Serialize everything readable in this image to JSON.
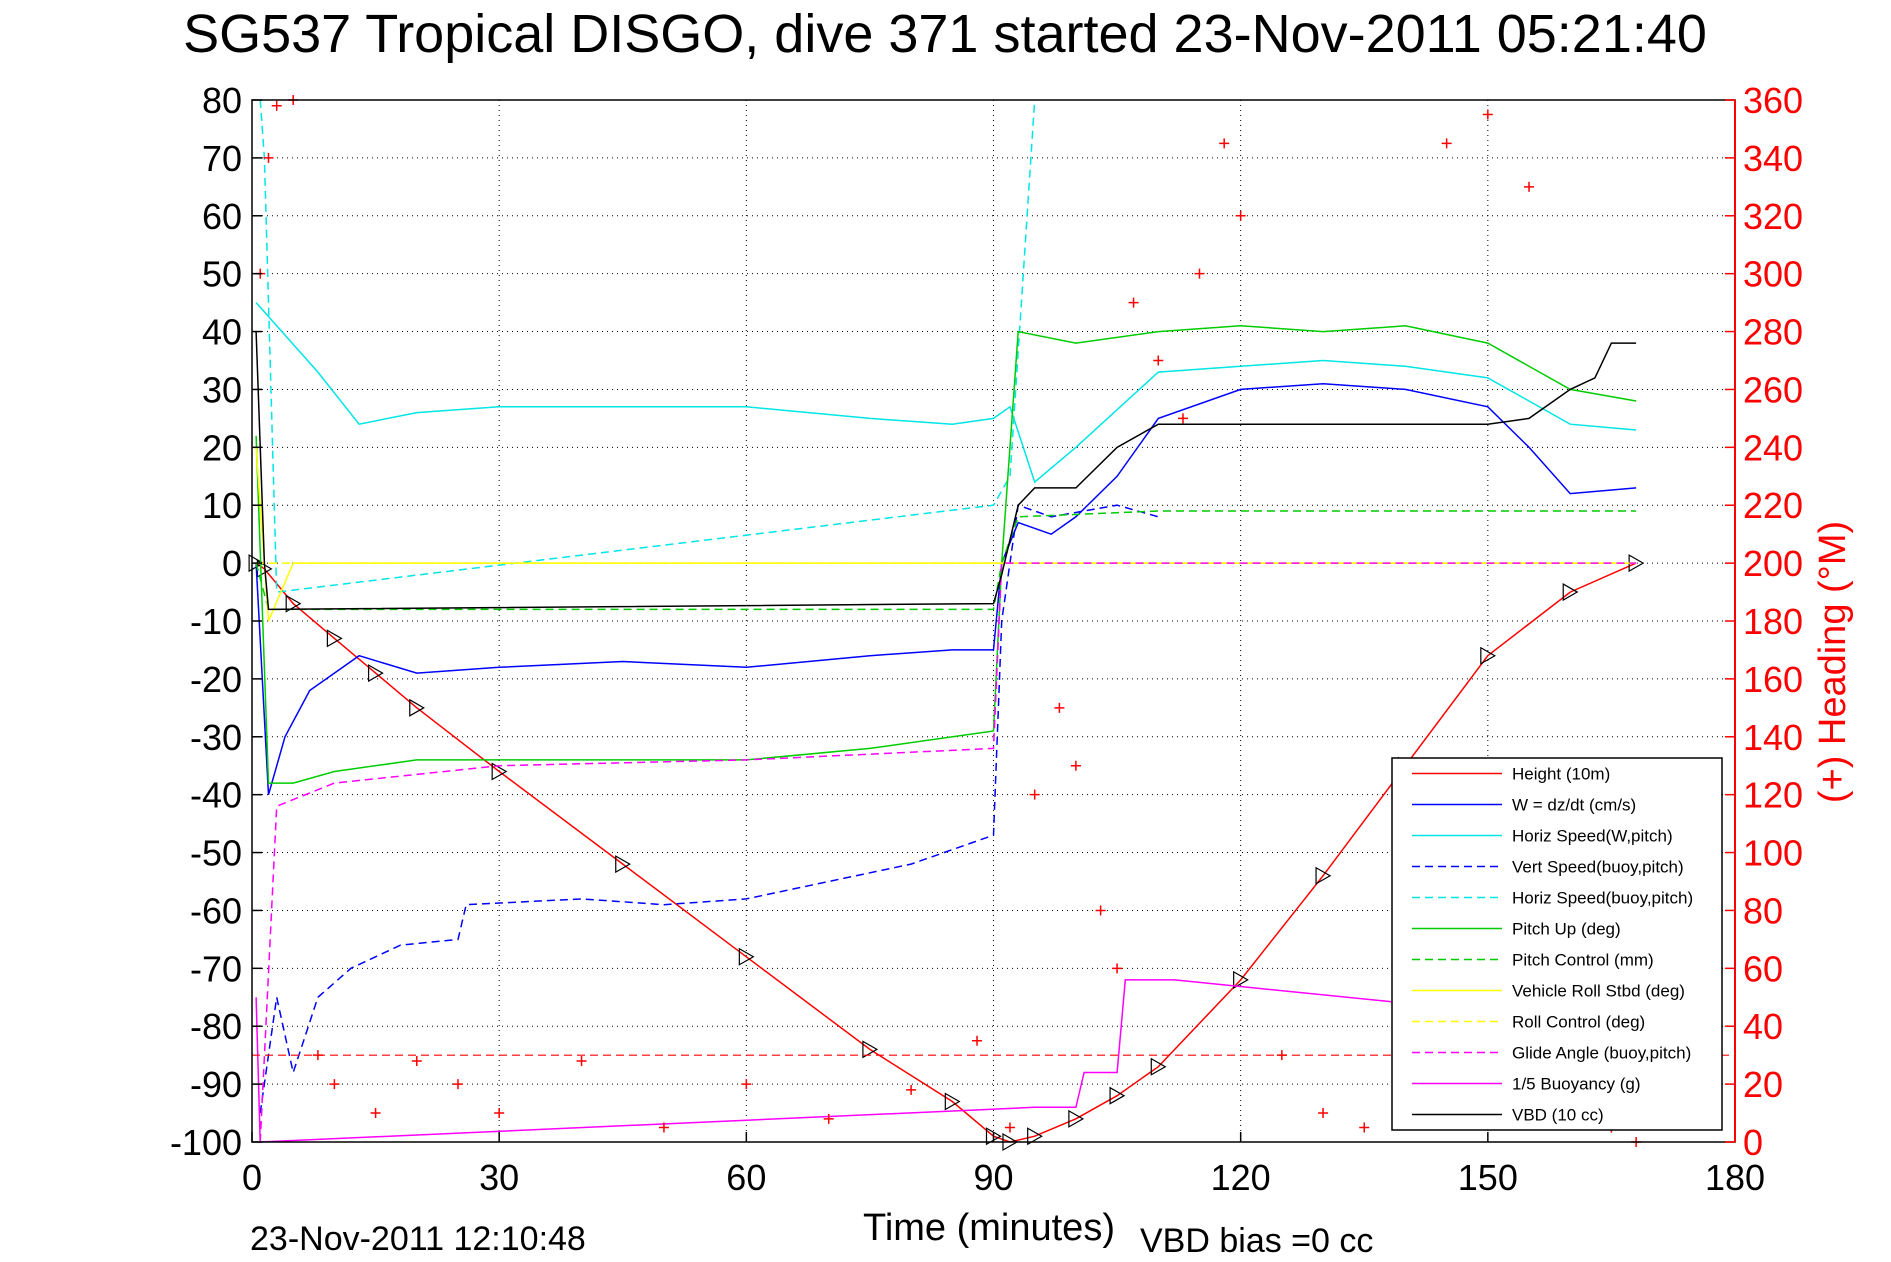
{
  "chart_data": {
    "type": "line",
    "title": "SG537 Tropical DISGO, dive 371 started 23-Nov-2011 05:21:40",
    "xlabel": "Time (minutes)",
    "ylabel": "",
    "y2label": "(+) Heading (°M)",
    "xlim": [
      0,
      180
    ],
    "ylim": [
      -100,
      80
    ],
    "y2lim": [
      0,
      360
    ],
    "xticks": [
      "0",
      "30",
      "60",
      "90",
      "120",
      "150",
      "180"
    ],
    "yticks": [
      "80",
      "70",
      "60",
      "50",
      "40",
      "30",
      "20",
      "10",
      "0",
      "-10",
      "-20",
      "-30",
      "-40",
      "-50",
      "-60",
      "-70",
      "-80",
      "-90",
      "-100"
    ],
    "y2ticks": [
      "360",
      "340",
      "320",
      "300",
      "280",
      "260",
      "240",
      "220",
      "200",
      "180",
      "160",
      "140",
      "120",
      "100",
      "80",
      "60",
      "40",
      "20",
      "0"
    ],
    "grid": true,
    "legend_position": "bottom-right",
    "colors": {
      "height": "#ff0000",
      "w": "#0000ff",
      "horiz_speed": "#00e5e5",
      "pitch": "#00cc00",
      "roll": "#ffff00",
      "glide": "#ff00ff",
      "vbd": "#000000",
      "heading": "#ff0000"
    },
    "series": [
      {
        "name": "Height (10m)",
        "style": "solid",
        "color": "#ff0000",
        "x": [
          0.5,
          1.5,
          5,
          10,
          15,
          20,
          30,
          45,
          60,
          75,
          85,
          90,
          92,
          95,
          100,
          105,
          110,
          120,
          130,
          140,
          150,
          160,
          168
        ],
        "y": [
          0,
          -1,
          -7,
          -13,
          -19,
          -25,
          -36,
          -52,
          -68,
          -84,
          -93,
          -99,
          -100,
          -99,
          -96,
          -92,
          -87,
          -72,
          -54,
          -35,
          -16,
          -5,
          0
        ]
      },
      {
        "name": "W = dz/dt (cm/s)",
        "style": "solid",
        "color": "#0000ff",
        "x": [
          0.5,
          2,
          4,
          7,
          10,
          13,
          20,
          30,
          45,
          60,
          75,
          85,
          90,
          91,
          93,
          97,
          100,
          105,
          110,
          120,
          130,
          140,
          150,
          155,
          160,
          168
        ],
        "y": [
          0,
          -40,
          -30,
          -22,
          -19,
          -16,
          -19,
          -18,
          -17,
          -18,
          -16,
          -15,
          -15,
          0,
          7,
          5,
          8,
          15,
          25,
          30,
          31,
          30,
          27,
          20,
          12,
          13
        ]
      },
      {
        "name": "Horiz Speed(W,pitch)",
        "style": "solid",
        "color": "#00e5e5",
        "x": [
          0.5,
          3,
          8,
          13,
          20,
          30,
          45,
          60,
          75,
          85,
          90,
          92,
          95,
          100,
          110,
          120,
          130,
          140,
          150,
          155,
          160,
          168
        ],
        "y": [
          45,
          41,
          33,
          24,
          26,
          27,
          27,
          27,
          25,
          24,
          25,
          27,
          14,
          20,
          33,
          34,
          35,
          34,
          32,
          28,
          24,
          23
        ]
      },
      {
        "name": "Vert Speed(buoy,pitch)",
        "style": "dashed",
        "color": "#0000ff",
        "x": [
          1,
          3,
          5,
          8,
          12,
          18,
          25,
          26,
          40,
          50,
          60,
          70,
          80,
          90,
          91,
          93,
          97,
          105,
          110
        ],
        "y": [
          -95,
          -75,
          -88,
          -75,
          -70,
          -66,
          -65,
          -59,
          -58,
          -59,
          -58,
          -55,
          -52,
          -47,
          -10,
          10,
          8,
          10,
          8
        ]
      },
      {
        "name": "Horiz Speed(buoy,pitch)",
        "style": "dashed",
        "color": "#00e5e5",
        "x": [
          1,
          1.5,
          3,
          90,
          92,
          95
        ],
        "y": [
          80,
          70,
          -5,
          10,
          15,
          80
        ]
      },
      {
        "name": "Pitch Up (deg)",
        "style": "solid",
        "color": "#00cc00",
        "x": [
          0.5,
          2,
          5,
          10,
          20,
          30,
          45,
          60,
          75,
          90,
          91,
          93,
          100,
          110,
          120,
          130,
          140,
          150,
          160,
          168
        ],
        "y": [
          22,
          -38,
          -38,
          -36,
          -34,
          -34,
          -34,
          -34,
          -32,
          -29,
          0,
          40,
          38,
          40,
          41,
          40,
          41,
          38,
          30,
          28
        ]
      },
      {
        "name": "Pitch Control (mm)",
        "style": "dashed",
        "color": "#00cc00",
        "x": [
          0.5,
          2,
          20,
          60,
          90,
          91,
          93,
          110,
          168
        ],
        "y": [
          0,
          -8,
          -8,
          -8,
          -8,
          0,
          8,
          9,
          9
        ]
      },
      {
        "name": "Vehicle Roll Stbd (deg)",
        "style": "solid",
        "color": "#ffff00",
        "x": [
          0.5,
          2,
          5,
          10,
          30,
          60,
          90,
          92,
          100,
          110,
          130,
          150,
          165,
          168
        ],
        "y": [
          20,
          -10,
          0,
          0,
          0,
          0,
          0,
          0,
          0,
          0,
          0,
          0,
          0,
          0
        ]
      },
      {
        "name": "Roll Control (deg)",
        "style": "dashed",
        "color": "#ffff00",
        "x": [
          0.5,
          2,
          10,
          50,
          90,
          92,
          110,
          168
        ],
        "y": [
          0,
          0,
          0,
          0,
          0,
          0,
          0,
          0
        ]
      },
      {
        "name": "Glide Angle (buoy,pitch)",
        "style": "dashed",
        "color": "#ff00ff",
        "x": [
          1,
          3,
          10,
          30,
          60,
          90,
          91,
          93,
          168
        ],
        "y": [
          -100,
          -42,
          -38,
          -35,
          -34,
          -32,
          0,
          0,
          0
        ]
      },
      {
        "name": "1/5 Buoyancy (g)",
        "style": "solid",
        "color": "#ff00ff",
        "x": [
          0.5,
          1,
          95,
          100,
          101,
          105,
          106,
          112,
          140
        ],
        "y": [
          -75,
          -100,
          -94,
          -94,
          -88,
          -88,
          -72,
          -72,
          -76
        ]
      },
      {
        "name": "VBD (10 cc)",
        "style": "solid",
        "color": "#000000",
        "x": [
          0.5,
          1.5,
          2,
          90,
          91,
          93,
          95,
          100,
          105,
          110,
          115,
          150,
          155,
          160,
          163,
          165,
          168
        ],
        "y": [
          40,
          0,
          -8,
          -7,
          -2,
          10,
          13,
          13,
          20,
          24,
          24,
          24,
          25,
          30,
          32,
          38,
          38
        ]
      }
    ],
    "heading_series": {
      "name": "(+) Heading (°M)",
      "marker": "+",
      "color": "#ff0000",
      "x": [
        1,
        2,
        3,
        5,
        8,
        10,
        15,
        20,
        25,
        30,
        40,
        50,
        60,
        70,
        80,
        88,
        92,
        95,
        98,
        100,
        103,
        105,
        107,
        110,
        113,
        115,
        118,
        120,
        125,
        130,
        135,
        140,
        145,
        150,
        155,
        160,
        165,
        168
      ],
      "y": [
        300,
        340,
        358,
        360,
        30,
        20,
        10,
        28,
        20,
        10,
        28,
        5,
        20,
        8,
        18,
        35,
        5,
        120,
        150,
        130,
        80,
        60,
        290,
        270,
        250,
        300,
        345,
        320,
        30,
        10,
        5,
        20,
        345,
        355,
        330,
        10,
        5,
        0
      ]
    },
    "reference_line": {
      "style": "dashed",
      "color": "#ff0000",
      "y2": 30
    }
  },
  "legend": [
    {
      "label": "Height (10m)",
      "color": "#ff0000",
      "style": "solid"
    },
    {
      "label": "W = dz/dt (cm/s)",
      "color": "#0000ff",
      "style": "solid"
    },
    {
      "label": "Horiz Speed(W,pitch)",
      "color": "#00e5e5",
      "style": "solid"
    },
    {
      "label": "Vert Speed(buoy,pitch)",
      "color": "#0000ff",
      "style": "dashed"
    },
    {
      "label": "Horiz Speed(buoy,pitch)",
      "color": "#00e5e5",
      "style": "dashed"
    },
    {
      "label": "Pitch Up (deg)",
      "color": "#00cc00",
      "style": "solid"
    },
    {
      "label": "Pitch Control (mm)",
      "color": "#00cc00",
      "style": "dashed"
    },
    {
      "label": "Vehicle Roll Stbd (deg)",
      "color": "#ffff00",
      "style": "solid"
    },
    {
      "label": "Roll Control (deg)",
      "color": "#ffff00",
      "style": "dashed"
    },
    {
      "label": "Glide Angle (buoy,pitch)",
      "color": "#ff00ff",
      "style": "dashed"
    },
    {
      "label": "1/5 Buoyancy (g)",
      "color": "#ff00ff",
      "style": "solid"
    },
    {
      "label": "VBD (10 cc)",
      "color": "#000000",
      "style": "solid"
    }
  ],
  "footer": {
    "timestamp": "23-Nov-2011 12:10:48",
    "vbd_bias": "VBD bias =0 cc"
  }
}
